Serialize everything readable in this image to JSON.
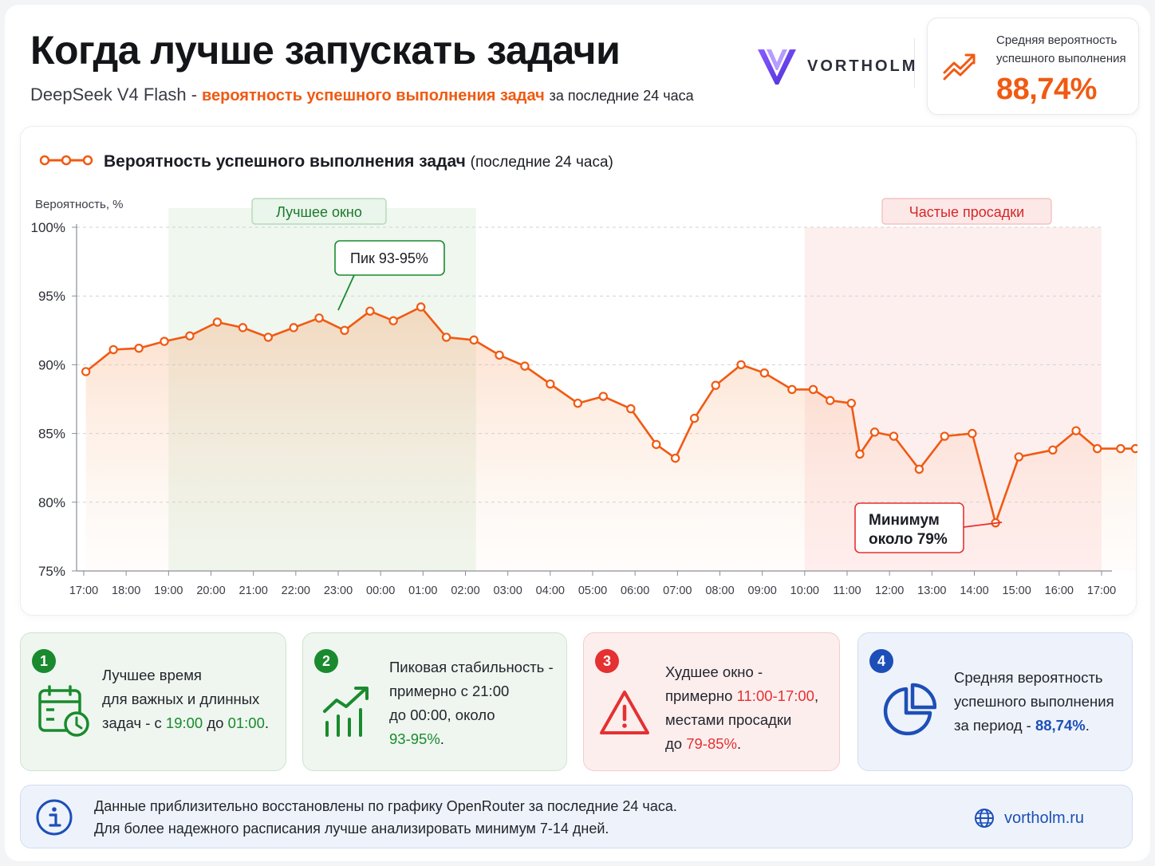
{
  "header": {
    "title": "Когда лучше запускать задачи",
    "subtitle_model": "DeepSeek V4 Flash -",
    "subtitle_highlight": "вероятность успешного выполнения задач",
    "subtitle_tail": "за последние 24 часа",
    "brand": "VORTHOLM",
    "brand_color": "#6a3df0"
  },
  "kpi": {
    "label": "Средняя вероятность успешного выполнения",
    "value": "88,74%",
    "icon": "trend-up-icon"
  },
  "chart_data": {
    "type": "line",
    "title": "Вероятность успешного выполнения задач",
    "title_suffix": "(последние 24 часа)",
    "ylabel": "Вероятность, %",
    "ylim": [
      75,
      100
    ],
    "yticks": [
      "75%",
      "80%",
      "85%",
      "90%",
      "95%",
      "100%"
    ],
    "xticks": [
      "17:00",
      "18:00",
      "19:00",
      "20:00",
      "21:00",
      "22:00",
      "23:00",
      "00:00",
      "01:00",
      "02:00",
      "03:00",
      "04:00",
      "05:00",
      "06:00",
      "07:00",
      "08:00",
      "09:00",
      "10:00",
      "11:00",
      "12:00",
      "13:00",
      "14:00",
      "15:00",
      "16:00",
      "17:00"
    ],
    "series": [
      {
        "color": "#f05a12",
        "x": [
          0.05,
          0.7,
          1.3,
          1.9,
          2.5,
          3.15,
          3.75,
          4.35,
          4.95,
          5.55,
          6.15,
          6.75,
          7.3,
          7.95,
          8.55,
          9.2,
          9.8,
          10.4,
          11.0,
          11.65,
          12.25,
          12.9,
          13.5,
          13.95,
          14.4,
          14.9,
          15.5,
          16.05,
          16.7,
          17.2,
          17.6,
          18.1,
          18.3,
          18.65,
          19.1,
          19.7,
          20.3,
          20.95,
          21.5,
          22.05,
          22.85,
          23.4,
          23.9,
          24.45,
          24.8
        ],
        "y": [
          89.5,
          91.1,
          91.2,
          91.7,
          92.1,
          93.1,
          92.7,
          92.0,
          92.7,
          93.4,
          92.5,
          93.9,
          93.2,
          94.2,
          92.0,
          91.8,
          90.7,
          89.9,
          88.6,
          87.2,
          87.7,
          86.8,
          84.2,
          83.2,
          86.1,
          88.5,
          90.0,
          89.4,
          88.2,
          88.2,
          87.4,
          87.2,
          83.5,
          85.1,
          84.8,
          82.4,
          84.8,
          85.0,
          78.5,
          83.3,
          83.8,
          85.2,
          83.9,
          83.9,
          83.9
        ]
      }
    ],
    "annotations": {
      "best_window": "Лучшее окно",
      "frequent_dips": "Частые просадки",
      "peak": "Пик 93-95%",
      "min_line1": "Минимум",
      "min_line2": "около 79%"
    },
    "grid": "horizontal-dashed",
    "legend": "top-left"
  },
  "cards": [
    {
      "num": "1",
      "icon": "calendar-clock-icon",
      "l1": "Лучшее время",
      "l2": "для важных и длинных",
      "l3a": "задач - с ",
      "l3b": "19:00",
      "l3c": " до ",
      "l3d": "01:00",
      "l3e": "."
    },
    {
      "num": "2",
      "icon": "bar-growth-icon",
      "l1": "Пиковая стабильность -",
      "l2": "примерно с 21:00",
      "l3": "до 00:00, около",
      "l4": "93-95%",
      "l4e": "."
    },
    {
      "num": "3",
      "icon": "warning-icon",
      "l1": "Худшее окно -",
      "l2a": "примерно ",
      "l2b": "11:00-17:00",
      "l2c": ",",
      "l3": "местами просадки",
      "l4a": "до ",
      "l4b": "79-85%",
      "l4c": "."
    },
    {
      "num": "4",
      "icon": "pie-chart-icon",
      "l1": "Средняя вероятность",
      "l2": "успешного выполнения",
      "l3a": "за период - ",
      "l3b": "88,74%",
      "l3c": "."
    }
  ],
  "info": {
    "line1": "Данные приблизительно восстановлены по графику OpenRouter за последние 24 часа.",
    "line2": "Для более надежного расписания лучше анализировать минимум 7-14 дней.",
    "site": "vortholm.ru",
    "icon": "info-icon",
    "site_icon": "globe-icon"
  }
}
